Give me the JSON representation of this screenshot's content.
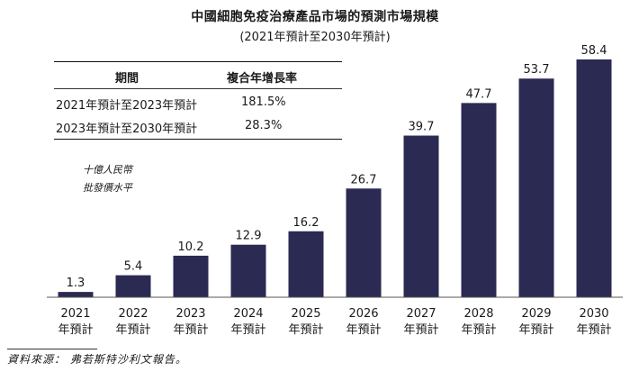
{
  "chart_data": {
    "type": "bar",
    "title": "中國細胞免疫治療產品市場的預測市場規模",
    "subtitle": "(2021年預計至2030年預計)",
    "unit_line1": "十億人民幣",
    "unit_line2": "批發價水平",
    "categories": [
      "2021",
      "2022",
      "2023",
      "2024",
      "2025",
      "2026",
      "2027",
      "2028",
      "2029",
      "2030"
    ],
    "category_suffix": "年預計",
    "values": [
      1.3,
      5.4,
      10.2,
      12.9,
      16.2,
      26.7,
      39.7,
      47.7,
      53.7,
      58.4
    ],
    "value_labels": [
      "1.3",
      "5.4",
      "10.2",
      "12.9",
      "16.2",
      "26.7",
      "39.7",
      "47.7",
      "53.7",
      "58.4"
    ],
    "ylim": [
      0,
      58.4
    ],
    "bar_color": "#2b2a52",
    "table": {
      "headers": [
        "期間",
        "複合年增長率"
      ],
      "rows": [
        [
          "2021年預計至2023年預計",
          "181.5%"
        ],
        [
          "2023年預計至2030年預計",
          "28.3%"
        ]
      ]
    },
    "source": "資料來源： 弗若斯特沙利文報告。"
  }
}
